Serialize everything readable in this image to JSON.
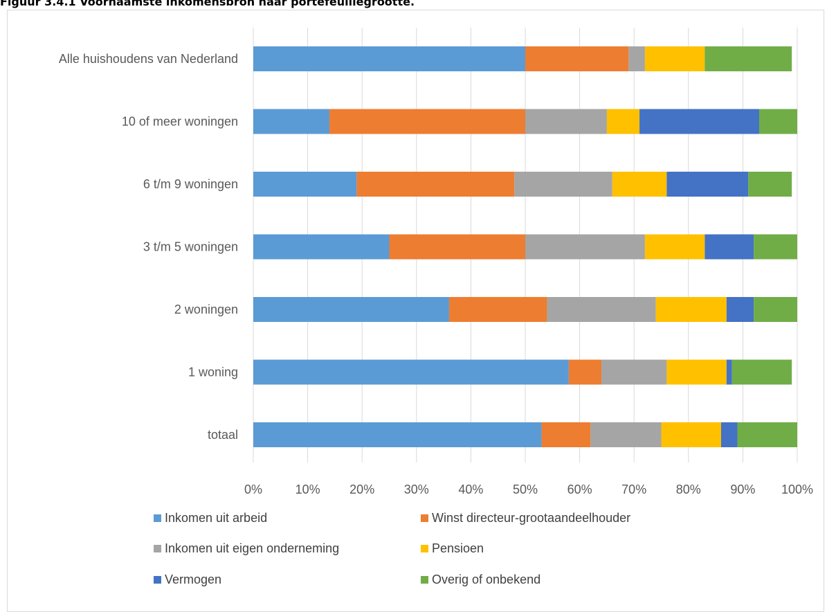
{
  "figure": {
    "title": "Figuur 3.4.1 Voornaamste inkomensbron naar portefeuillegrootte."
  },
  "chart_data": {
    "type": "bar",
    "orientation": "horizontal",
    "stacked": "percent",
    "categories": [
      "Alle huishoudens van Nederland",
      "10 of meer woningen",
      "6 t/m 9 woningen",
      "3 t/m 5 woningen",
      "2 woningen",
      "1 woning",
      "totaal"
    ],
    "series": [
      {
        "name": "Inkomen uit arbeid",
        "color": "#5b9bd5",
        "values": [
          50,
          14,
          19,
          25,
          36,
          58,
          53
        ]
      },
      {
        "name": "Winst directeur-grootaandeelhouder",
        "color": "#ed7d31",
        "values": [
          19,
          36,
          29,
          25,
          18,
          6,
          9
        ]
      },
      {
        "name": "Inkomen uit eigen onderneming",
        "color": "#a5a5a5",
        "values": [
          3,
          15,
          18,
          22,
          20,
          12,
          13
        ]
      },
      {
        "name": "Pensioen",
        "color": "#ffc000",
        "values": [
          11,
          6,
          10,
          11,
          13,
          11,
          11
        ]
      },
      {
        "name": "Vermogen",
        "color": "#4472c4",
        "values": [
          0,
          22,
          15,
          9,
          5,
          1,
          3
        ]
      },
      {
        "name": "Overig of onbekend",
        "color": "#70ad47",
        "values": [
          16,
          7,
          8,
          8,
          8,
          11,
          11
        ]
      }
    ],
    "x_ticks": [
      "0%",
      "10%",
      "20%",
      "30%",
      "40%",
      "50%",
      "60%",
      "70%",
      "80%",
      "90%",
      "100%"
    ],
    "xlim": [
      0,
      100
    ],
    "grid": "vertical",
    "legend": "bottom"
  }
}
